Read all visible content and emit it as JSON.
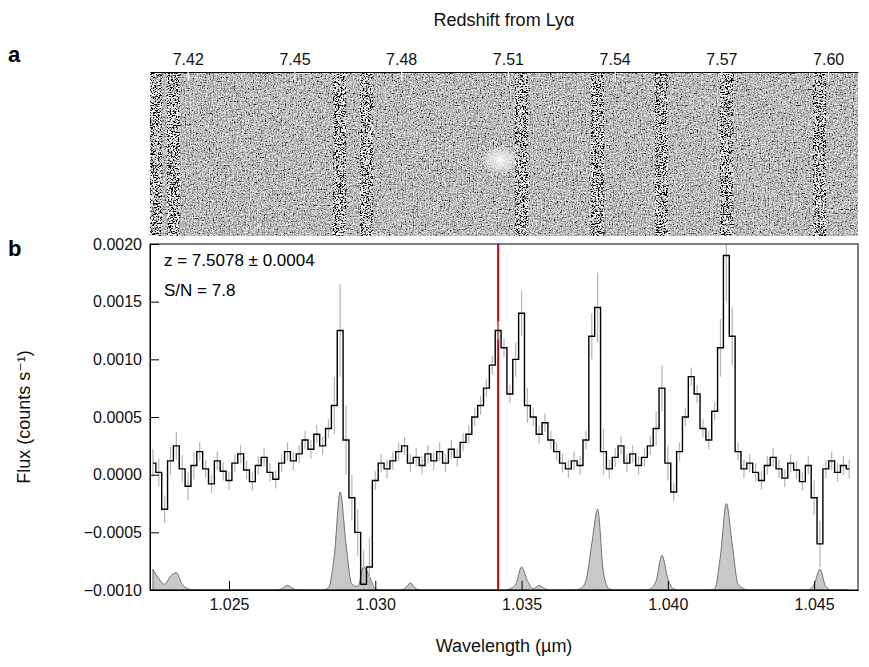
{
  "chart_data": [
    {
      "type": "image",
      "panel_label": "a",
      "xlabel": "Redshift from Lyα",
      "xlim": [
        7.4094,
        7.6084
      ],
      "xticks": [
        7.42,
        7.45,
        7.48,
        7.51,
        7.54,
        7.57,
        {
          "value": 7.6,
          "label": "7.60"
        }
      ],
      "sky_lines": [
        7.411,
        7.4159,
        7.4628,
        7.4702,
        7.5138,
        7.5352,
        7.5533,
        7.5714,
        7.5977
      ],
      "source": 7.5078
    },
    {
      "type": "line",
      "panel_label": "b",
      "xlabel": "Wavelength (µm)",
      "ylabel": "Flux (counts s⁻¹)",
      "annotations": [
        "z = 7.5078 ± 0.0004",
        "S/N = 7.8"
      ],
      "xlim": [
        1.0223,
        1.0465
      ],
      "xticks": [
        1.025,
        {
          "value": 1.03,
          "label": "1.030"
        },
        1.035,
        {
          "value": 1.04,
          "label": "1.040"
        },
        1.045
      ],
      "ylim": [
        -0.001,
        0.002
      ],
      "yticks": [
        {
          "value": -0.001,
          "label": "−0.0010"
        },
        {
          "value": -0.0005,
          "label": "−0.0005"
        },
        {
          "value": 0,
          "label": "0.0000"
        },
        {
          "value": 0.0005,
          "label": "0.0005"
        },
        {
          "value": 0.001,
          "label": "0.0010"
        },
        {
          "value": 0.0015,
          "label": "0.0015"
        },
        {
          "value": 0.002,
          "label": "0.0020"
        }
      ],
      "vline": {
        "x": 1.0342,
        "color": "#d40000"
      },
      "x": [
        1.0224,
        1.0226,
        1.0228,
        1.023,
        1.0232,
        1.0234,
        1.0236,
        1.0238,
        1.024,
        1.0242,
        1.0244,
        1.0246,
        1.0248,
        1.025,
        1.0252,
        1.0254,
        1.0256,
        1.0258,
        1.026,
        1.0262,
        1.0264,
        1.0266,
        1.0268,
        1.027,
        1.0272,
        1.0274,
        1.0276,
        1.0278,
        1.028,
        1.0282,
        1.0284,
        1.0286,
        1.0288,
        1.029,
        1.0292,
        1.0294,
        1.0296,
        1.0298,
        1.03,
        1.0302,
        1.0304,
        1.0306,
        1.0308,
        1.031,
        1.0312,
        1.0314,
        1.0316,
        1.0318,
        1.032,
        1.0322,
        1.0324,
        1.0326,
        1.0328,
        1.033,
        1.0332,
        1.0334,
        1.0336,
        1.0338,
        1.034,
        1.0342,
        1.0344,
        1.0346,
        1.0348,
        1.035,
        1.0352,
        1.0354,
        1.0356,
        1.0358,
        1.036,
        1.0362,
        1.0364,
        1.0366,
        1.0368,
        1.037,
        1.0372,
        1.0374,
        1.0376,
        1.0378,
        1.038,
        1.0382,
        1.0384,
        1.0386,
        1.0388,
        1.039,
        1.0392,
        1.0394,
        1.0396,
        1.0398,
        1.04,
        1.0402,
        1.0404,
        1.0406,
        1.0408,
        1.041,
        1.0412,
        1.0414,
        1.0416,
        1.0418,
        1.042,
        1.0422,
        1.0424,
        1.0426,
        1.0428,
        1.043,
        1.0432,
        1.0434,
        1.0436,
        1.0438,
        1.044,
        1.0442,
        1.0444,
        1.0446,
        1.0448,
        1.045,
        1.0452,
        1.0454,
        1.0456,
        1.0458,
        1.046,
        1.0462
      ],
      "series": [
        {
          "color": "#000000",
          "line_style": "step",
          "values": [
            0.0001,
            2e-05,
            -0.0003,
            0.00012,
            0.00025,
            5e-05,
            -0.0001,
            8e-05,
            0.0002,
            5e-05,
            -8e-05,
            0.00012,
            3e-05,
            -5e-05,
            0.0001,
            0.00018,
            4e-05,
            -6e-05,
            8e-05,
            0.00015,
            2e-05,
            -4e-05,
            0.0001,
            0.0002,
            0.00012,
            0.00018,
            0.0003,
            0.00022,
            0.00035,
            0.00025,
            0.0004,
            0.0006,
            0.00125,
            0.0003,
            -0.0002,
            -0.0005,
            -0.00095,
            -0.0008,
            -5e-05,
            0.0001,
            5e-05,
            0.00012,
            0.0002,
            0.00025,
            0.0001,
            0.00015,
            8e-05,
            0.00018,
            0.00012,
            0.0002,
            0.0001,
            0.00022,
            0.00015,
            0.00028,
            0.00035,
            0.0005,
            0.0006,
            0.00075,
            0.00095,
            0.00125,
            0.0011,
            0.0007,
            0.001,
            0.0014,
            0.0006,
            0.0005,
            0.00035,
            0.00045,
            0.0003,
            0.0002,
            0.0001,
            5e-05,
            0.00012,
            8e-05,
            0.0003,
            0.0012,
            0.00145,
            0.0002,
            5e-05,
            0.00015,
            0.00025,
            0.0001,
            0.00018,
            8e-05,
            0.00015,
            0.00025,
            0.0004,
            0.00075,
            0.0001,
            -0.00015,
            0.0002,
            0.0005,
            0.00085,
            0.0007,
            0.0004,
            0.0003,
            0.00055,
            0.0011,
            0.0019,
            0.0012,
            0.0002,
            5e-05,
            0.0001,
            2e-05,
            -5e-05,
            8e-05,
            0.00015,
            5e-05,
            -3e-05,
            0.0001,
            4e-05,
            -6e-05,
            8e-05,
            -0.0002,
            -0.0006,
            5e-05,
            0.00012,
            2e-05,
            8e-05,
            5e-05
          ],
          "errors": [
            0.00012,
            0.00012,
            0.00012,
            0.00012,
            0.00012,
            0.00012,
            0.00012,
            0.00012,
            8e-05,
            8e-05,
            8e-05,
            8e-05,
            8e-05,
            8e-05,
            8e-05,
            8e-05,
            8e-05,
            8e-05,
            8e-05,
            8e-05,
            8e-05,
            8e-05,
            8e-05,
            8e-05,
            8e-05,
            8e-05,
            8e-05,
            8e-05,
            8e-05,
            8e-05,
            8e-05,
            0.00025,
            0.0004,
            0.0003,
            0.0002,
            0.0002,
            0.0003,
            0.00025,
            8e-05,
            8e-05,
            8e-05,
            8e-05,
            8e-05,
            8e-05,
            8e-05,
            8e-05,
            8e-05,
            8e-05,
            8e-05,
            8e-05,
            8e-05,
            8e-05,
            8e-05,
            8e-05,
            8e-05,
            8e-05,
            8e-05,
            8e-05,
            8e-05,
            8e-05,
            8e-05,
            8e-05,
            0.00015,
            0.0002,
            0.00015,
            8e-05,
            8e-05,
            8e-05,
            8e-05,
            8e-05,
            8e-05,
            8e-05,
            8e-05,
            8e-05,
            8e-05,
            0.0002,
            0.0003,
            0.0002,
            8e-05,
            8e-05,
            8e-05,
            8e-05,
            8e-05,
            8e-05,
            8e-05,
            8e-05,
            0.00015,
            0.0002,
            0.00015,
            8e-05,
            8e-05,
            8e-05,
            8e-05,
            8e-05,
            8e-05,
            8e-05,
            8e-05,
            0.00025,
            0.0004,
            0.00025,
            8e-05,
            8e-05,
            8e-05,
            8e-05,
            8e-05,
            8e-05,
            8e-05,
            8e-05,
            8e-05,
            8e-05,
            8e-05,
            8e-05,
            8e-05,
            0.00015,
            0.0002,
            8e-05,
            8e-05,
            8e-05,
            8e-05,
            8e-05
          ]
        },
        {
          "type": "area",
          "color": "#c8c8c8",
          "values": [
            -0.00082,
            -0.0009,
            -0.00095,
            -0.00088,
            -0.00085,
            -0.00095,
            -0.00099,
            -0.001,
            -0.001,
            -0.001,
            -0.001,
            -0.001,
            -0.001,
            -0.001,
            -0.001,
            -0.001,
            -0.001,
            -0.001,
            -0.001,
            -0.001,
            -0.001,
            -0.001,
            -0.00099,
            -0.00096,
            -0.00099,
            -0.001,
            -0.001,
            -0.001,
            -0.001,
            -0.001,
            -0.00098,
            -0.0007,
            -0.00015,
            -0.0006,
            -0.00095,
            -0.00097,
            -0.0008,
            -0.00088,
            -0.00099,
            -0.001,
            -0.001,
            -0.001,
            -0.001,
            -0.00099,
            -0.00094,
            -0.00099,
            -0.001,
            -0.001,
            -0.001,
            -0.001,
            -0.001,
            -0.001,
            -0.001,
            -0.001,
            -0.001,
            -0.001,
            -0.001,
            -0.001,
            -0.001,
            -0.001,
            -0.001,
            -0.00099,
            -0.00095,
            -0.0008,
            -0.00092,
            -0.00099,
            -0.00096,
            -0.00099,
            -0.001,
            -0.001,
            -0.001,
            -0.001,
            -0.001,
            -0.00099,
            -0.00092,
            -0.0006,
            -0.0003,
            -0.00085,
            -0.00099,
            -0.001,
            -0.001,
            -0.001,
            -0.001,
            -0.001,
            -0.001,
            -0.00099,
            -0.00092,
            -0.0007,
            -0.0009,
            -0.00099,
            -0.001,
            -0.001,
            -0.001,
            -0.001,
            -0.001,
            -0.001,
            -0.00099,
            -0.0007,
            -0.00025,
            -0.0006,
            -0.00095,
            -0.00099,
            -0.001,
            -0.001,
            -0.001,
            -0.001,
            -0.001,
            -0.001,
            -0.001,
            -0.001,
            -0.001,
            -0.001,
            -0.001,
            -0.00095,
            -0.00082,
            -0.00097,
            -0.001,
            -0.001,
            -0.001,
            -0.001
          ]
        }
      ]
    }
  ]
}
